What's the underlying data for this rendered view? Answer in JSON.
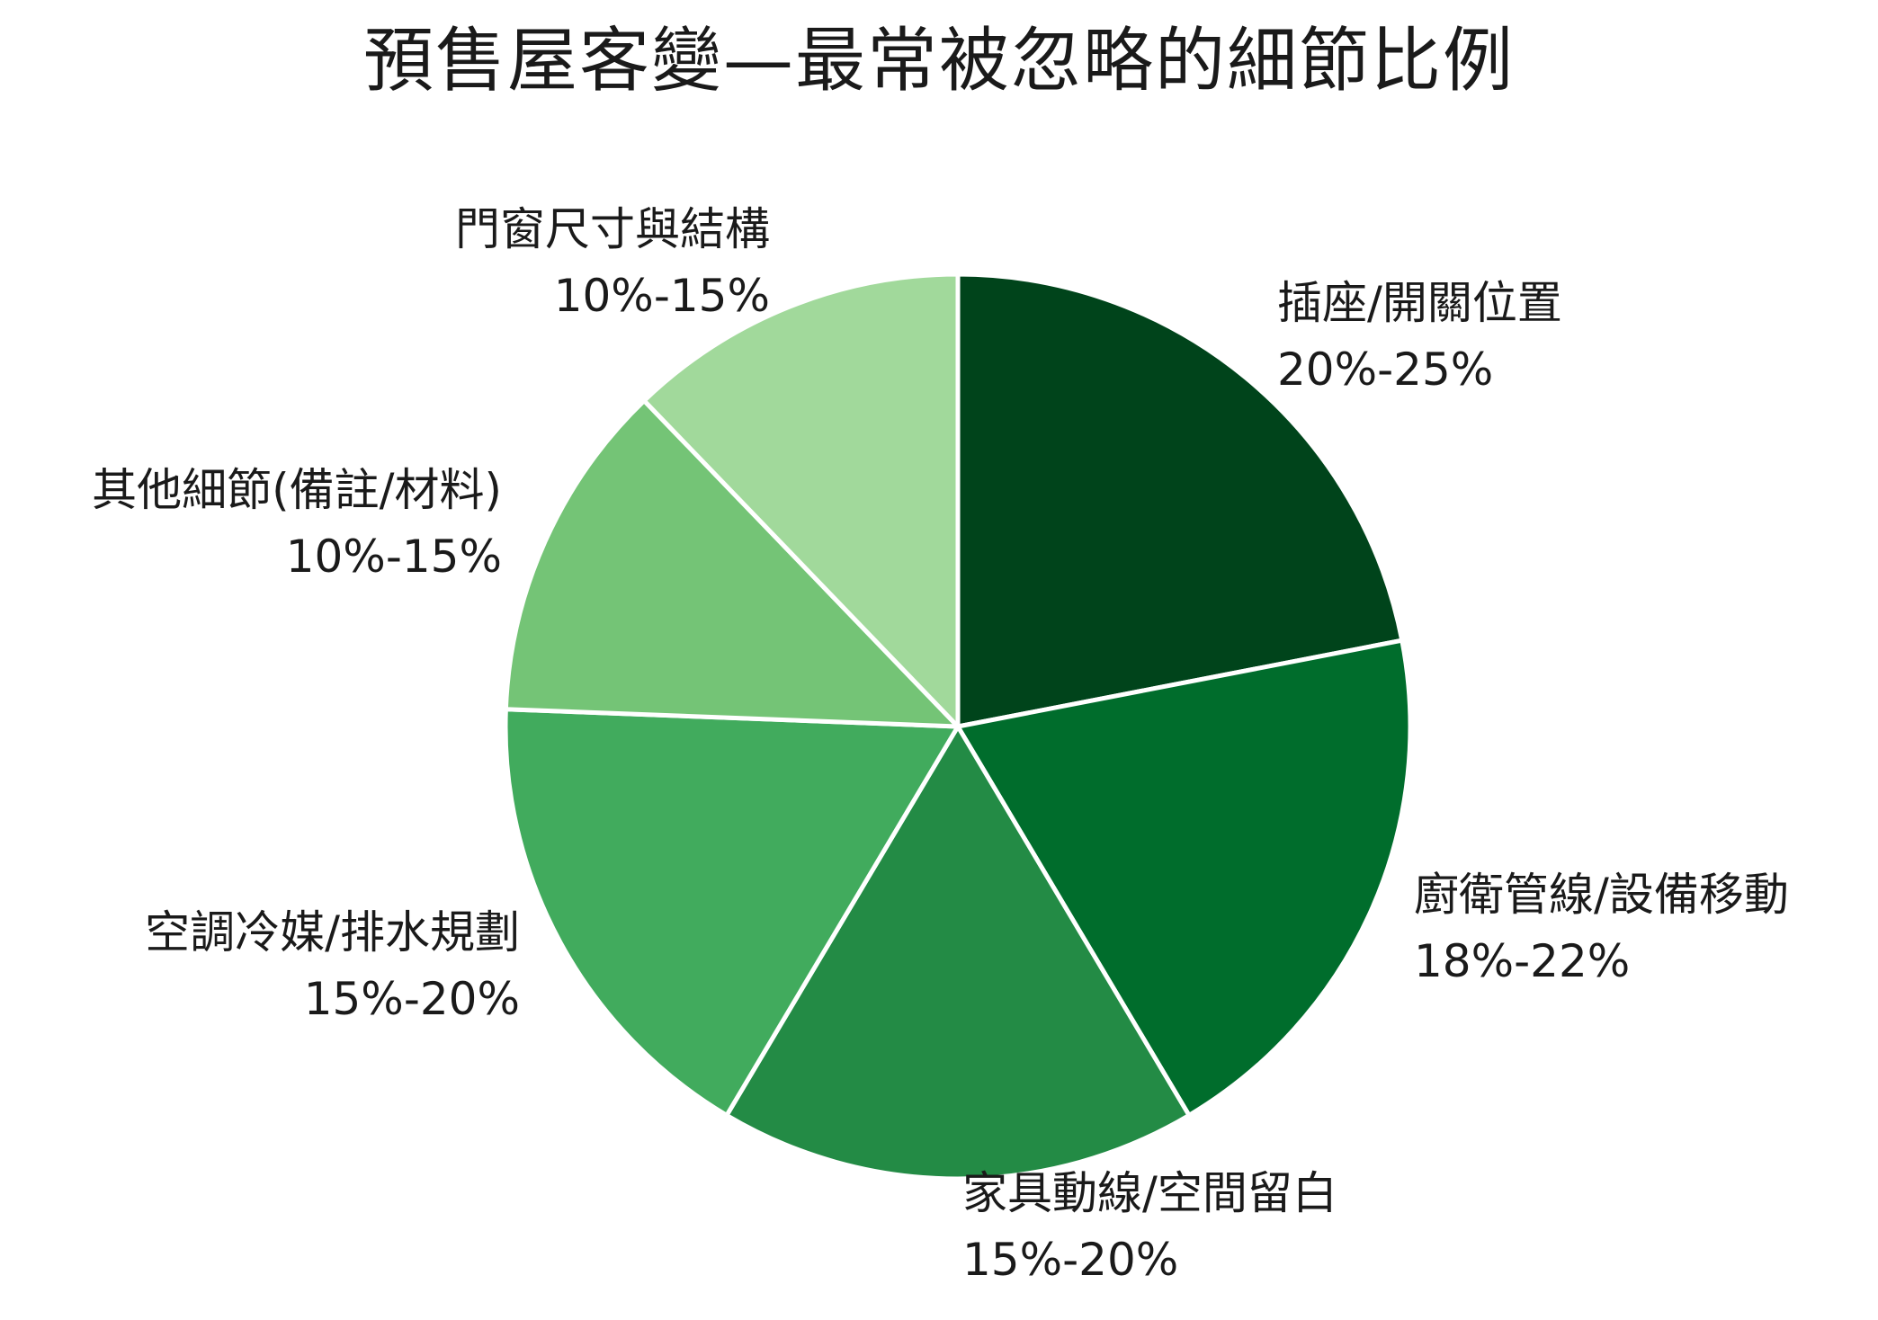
{
  "chart_data": {
    "type": "pie",
    "title": "預售屋客變—最常被忽略的細節比例",
    "start_angle_deg": 0,
    "direction": "clockwise",
    "slices": [
      {
        "label": "插座/開關位置",
        "range": "20%-25%",
        "value": 22.5,
        "color": "#00441b"
      },
      {
        "label": "廚衛管線/設備移動",
        "range": "18%-22%",
        "value": 20,
        "color": "#006d2c"
      },
      {
        "label": "家具動線/空間留白",
        "range": "15%-20%",
        "value": 17.5,
        "color": "#238b45"
      },
      {
        "label": "空調冷媒/排水規劃",
        "range": "15%-20%",
        "value": 17.5,
        "color": "#41ab5d"
      },
      {
        "label": "其他細節(備註/材料)",
        "range": "10%-15%",
        "value": 12.5,
        "color": "#74c476"
      },
      {
        "label": "門窗尺寸與結構",
        "range": "10%-15%",
        "value": 12.5,
        "color": "#a1d99b"
      }
    ]
  }
}
